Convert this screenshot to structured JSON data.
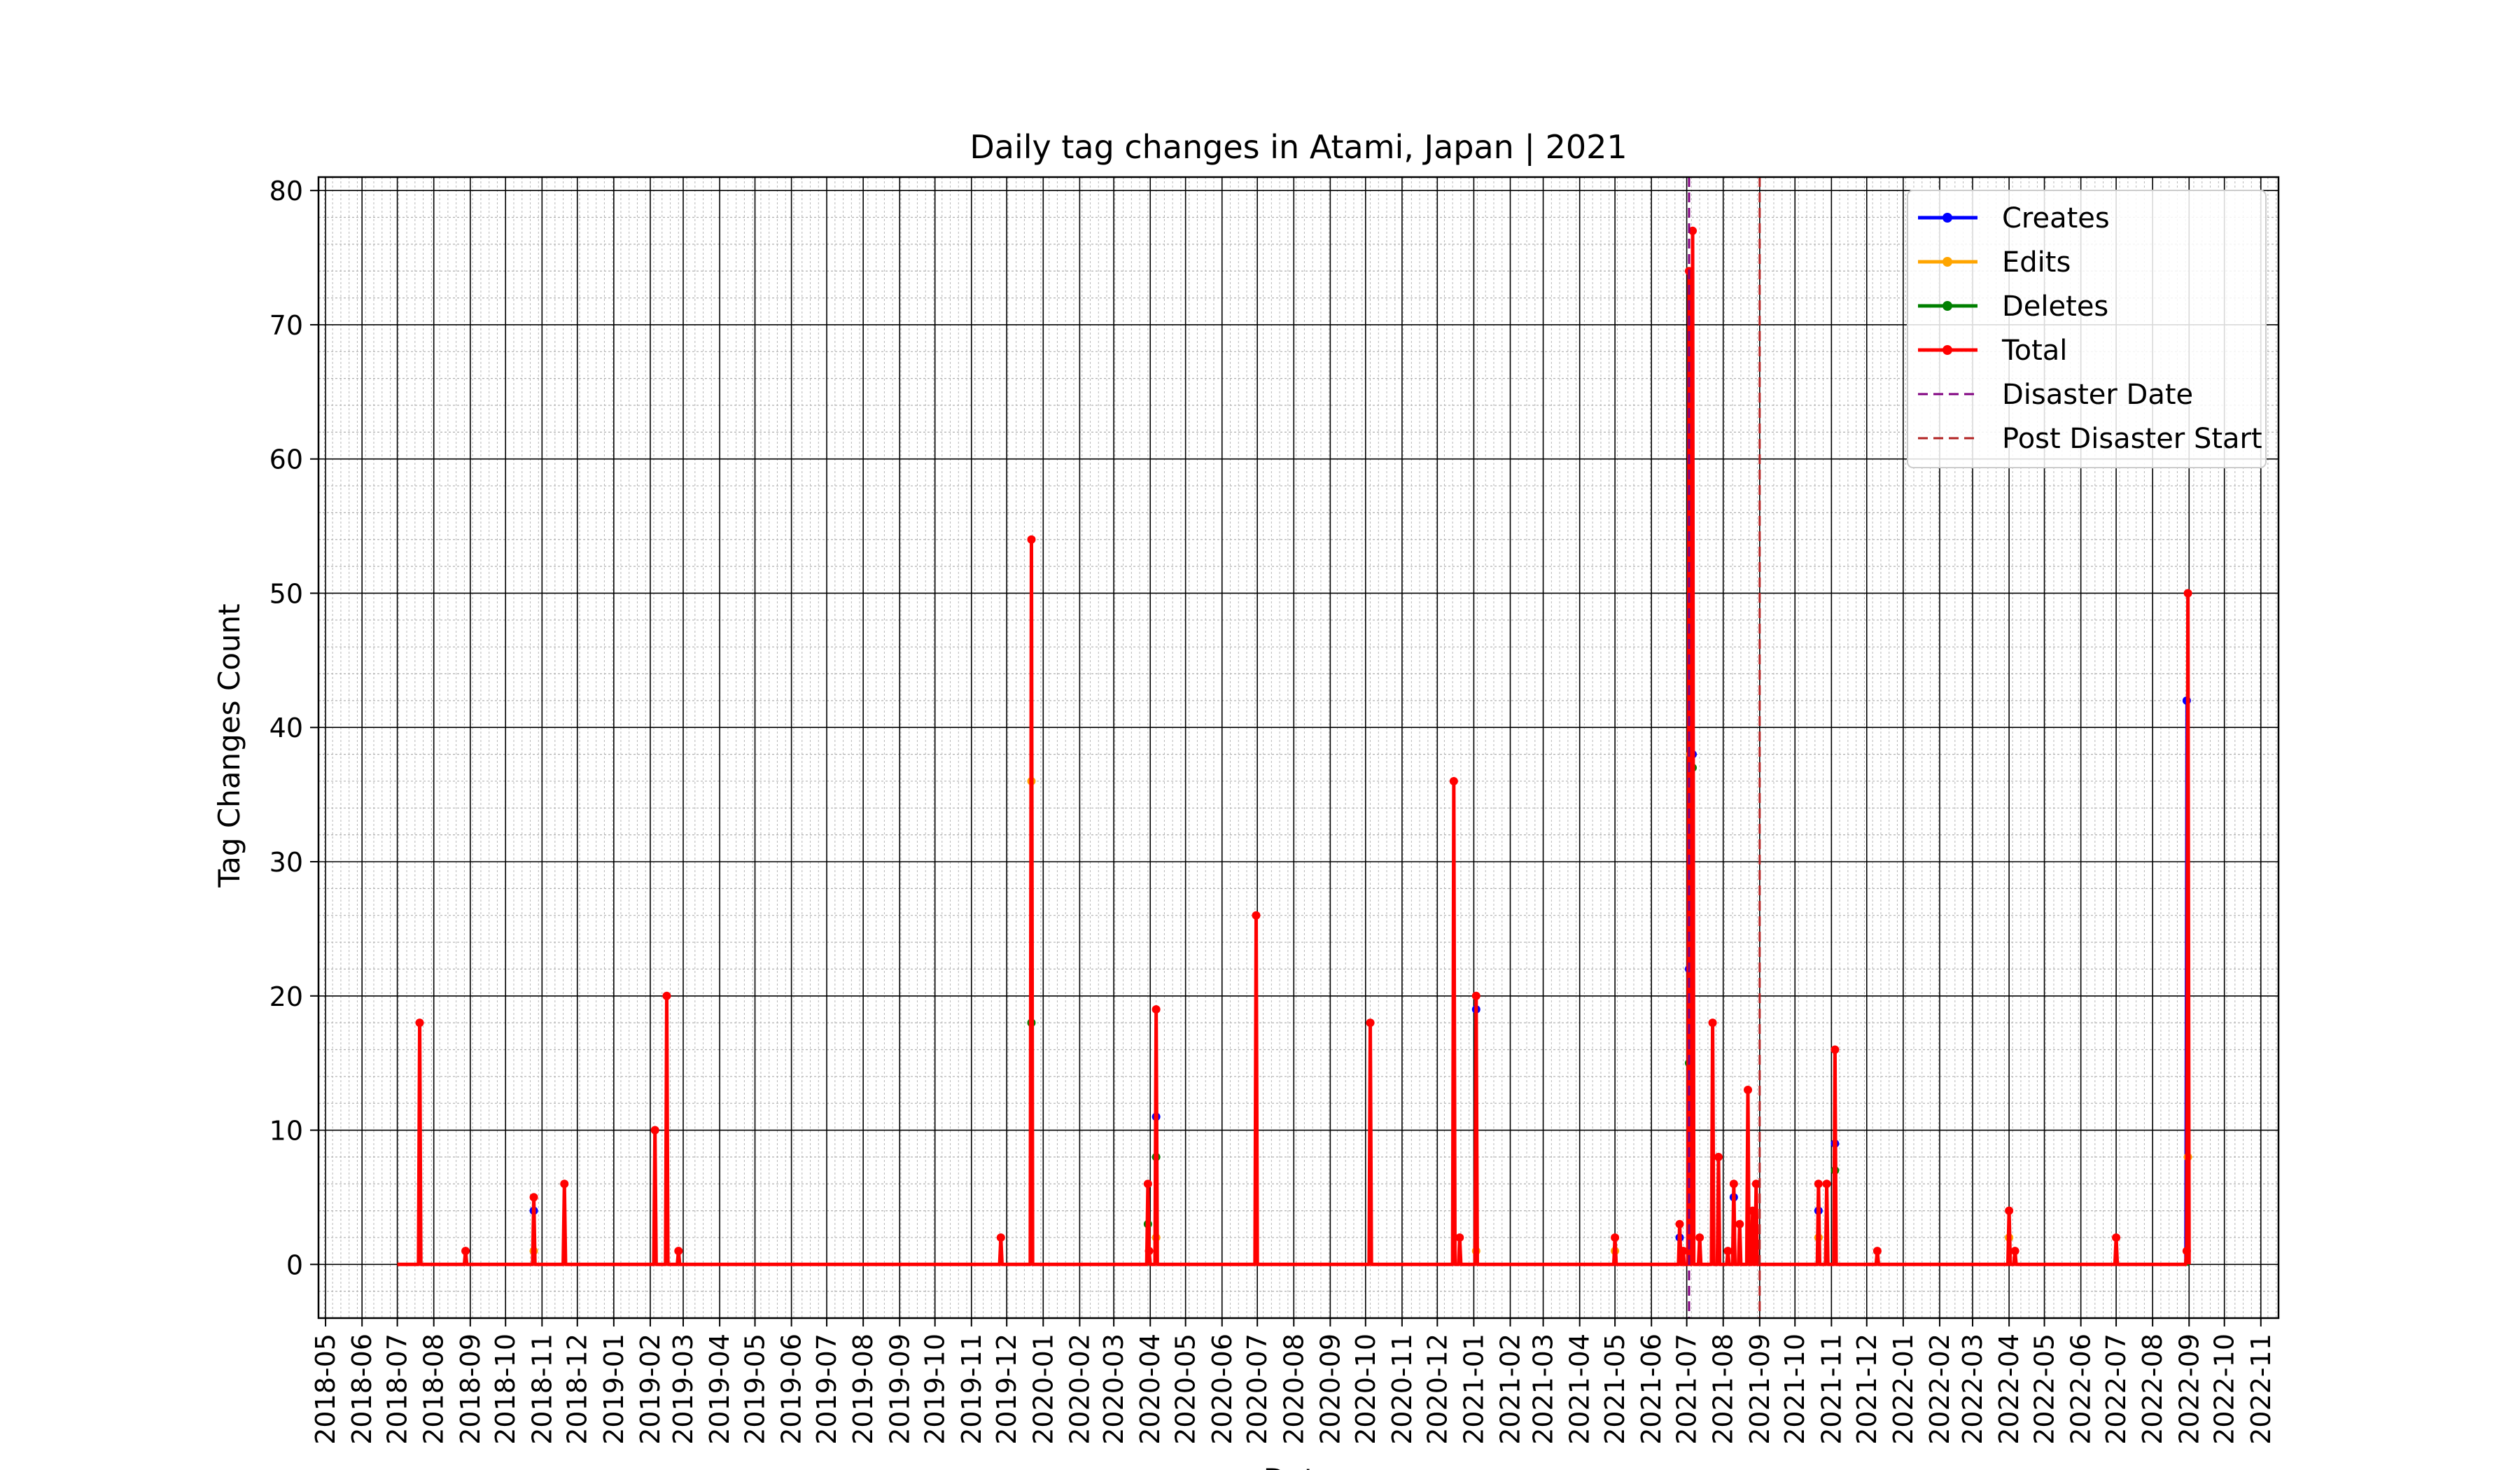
{
  "chart_data": {
    "type": "line",
    "title": "Daily tag changes in Atami, Japan | 2021",
    "xlabel": "Date",
    "ylabel": "Tag Changes Count",
    "ylim": [
      -4,
      81
    ],
    "xlim": [
      "2018-04-25",
      "2022-11-16"
    ],
    "x_ticks": [
      "2018-05",
      "2018-06",
      "2018-07",
      "2018-08",
      "2018-09",
      "2018-10",
      "2018-11",
      "2018-12",
      "2019-01",
      "2019-02",
      "2019-03",
      "2019-04",
      "2019-05",
      "2019-06",
      "2019-07",
      "2019-08",
      "2019-09",
      "2019-10",
      "2019-11",
      "2019-12",
      "2020-01",
      "2020-02",
      "2020-03",
      "2020-04",
      "2020-05",
      "2020-06",
      "2020-07",
      "2020-08",
      "2020-09",
      "2020-10",
      "2020-11",
      "2020-12",
      "2021-01",
      "2021-02",
      "2021-03",
      "2021-04",
      "2021-05",
      "2021-06",
      "2021-07",
      "2021-08",
      "2021-09",
      "2021-10",
      "2021-11",
      "2021-12",
      "2022-01",
      "2022-02",
      "2022-03",
      "2022-04",
      "2022-05",
      "2022-06",
      "2022-07",
      "2022-08",
      "2022-09",
      "2022-10",
      "2022-11"
    ],
    "y_ticks": [
      0,
      10,
      20,
      30,
      40,
      50,
      60,
      70,
      80
    ],
    "grid": true,
    "legend_position": "top-right",
    "date_range": [
      "2018-07-01",
      "2022-09-01"
    ],
    "series": [
      {
        "name": "Creates",
        "color": "#0000ff",
        "points": [
          [
            "2018-10-25",
            4
          ],
          [
            "2020-04-06",
            11
          ],
          [
            "2021-01-03",
            19
          ],
          [
            "2021-06-25",
            2
          ],
          [
            "2021-07-03",
            22
          ],
          [
            "2021-07-06",
            38
          ],
          [
            "2021-08-10",
            5
          ],
          [
            "2021-10-21",
            4
          ],
          [
            "2021-11-04",
            9
          ],
          [
            "2022-08-30",
            42
          ]
        ]
      },
      {
        "name": "Edits",
        "color": "#ffa500",
        "points": [
          [
            "2018-10-25",
            1
          ],
          [
            "2019-12-22",
            36
          ],
          [
            "2020-04-06",
            2
          ],
          [
            "2021-01-03",
            1
          ],
          [
            "2021-05-01",
            1
          ],
          [
            "2021-07-04",
            38
          ],
          [
            "2021-08-25",
            3
          ],
          [
            "2021-10-21",
            2
          ],
          [
            "2022-04-01",
            2
          ],
          [
            "2022-08-31",
            8
          ]
        ]
      },
      {
        "name": "Deletes",
        "color": "#008000",
        "points": [
          [
            "2019-12-22",
            18
          ],
          [
            "2020-03-30",
            3
          ],
          [
            "2020-04-06",
            8
          ],
          [
            "2021-07-03",
            15
          ],
          [
            "2021-07-06",
            37
          ],
          [
            "2021-11-04",
            7
          ]
        ]
      },
      {
        "name": "Total",
        "color": "#ff0000",
        "points": [
          [
            "2018-07-20",
            18
          ],
          [
            "2018-08-28",
            1
          ],
          [
            "2018-10-25",
            5
          ],
          [
            "2018-11-20",
            6
          ],
          [
            "2019-02-05",
            10
          ],
          [
            "2019-02-15",
            20
          ],
          [
            "2019-02-25",
            1
          ],
          [
            "2019-11-26",
            2
          ],
          [
            "2019-12-22",
            54
          ],
          [
            "2020-03-30",
            6
          ],
          [
            "2020-03-31",
            1
          ],
          [
            "2020-04-06",
            19
          ],
          [
            "2020-06-30",
            26
          ],
          [
            "2020-10-05",
            18
          ],
          [
            "2020-12-15",
            36
          ],
          [
            "2020-12-20",
            2
          ],
          [
            "2021-01-03",
            20
          ],
          [
            "2021-05-01",
            2
          ],
          [
            "2021-06-25",
            3
          ],
          [
            "2021-06-28",
            1
          ],
          [
            "2021-07-03",
            74
          ],
          [
            "2021-07-06",
            77
          ],
          [
            "2021-07-12",
            2
          ],
          [
            "2021-07-23",
            18
          ],
          [
            "2021-07-28",
            8
          ],
          [
            "2021-08-05",
            1
          ],
          [
            "2021-08-10",
            6
          ],
          [
            "2021-08-15",
            3
          ],
          [
            "2021-08-22",
            13
          ],
          [
            "2021-08-26",
            4
          ],
          [
            "2021-08-29",
            6
          ],
          [
            "2021-10-21",
            6
          ],
          [
            "2021-10-28",
            6
          ],
          [
            "2021-11-04",
            16
          ],
          [
            "2021-12-10",
            1
          ],
          [
            "2022-04-01",
            4
          ],
          [
            "2022-04-06",
            1
          ],
          [
            "2022-07-01",
            2
          ],
          [
            "2022-08-30",
            1
          ],
          [
            "2022-08-31",
            50
          ]
        ]
      }
    ],
    "vlines": [
      {
        "name": "Disaster Date",
        "date": "2021-07-03",
        "color": "#800080",
        "style": "dashed"
      },
      {
        "name": "Post Disaster Start",
        "date": "2021-09-01",
        "color": "#b22222",
        "style": "dashed"
      }
    ]
  }
}
